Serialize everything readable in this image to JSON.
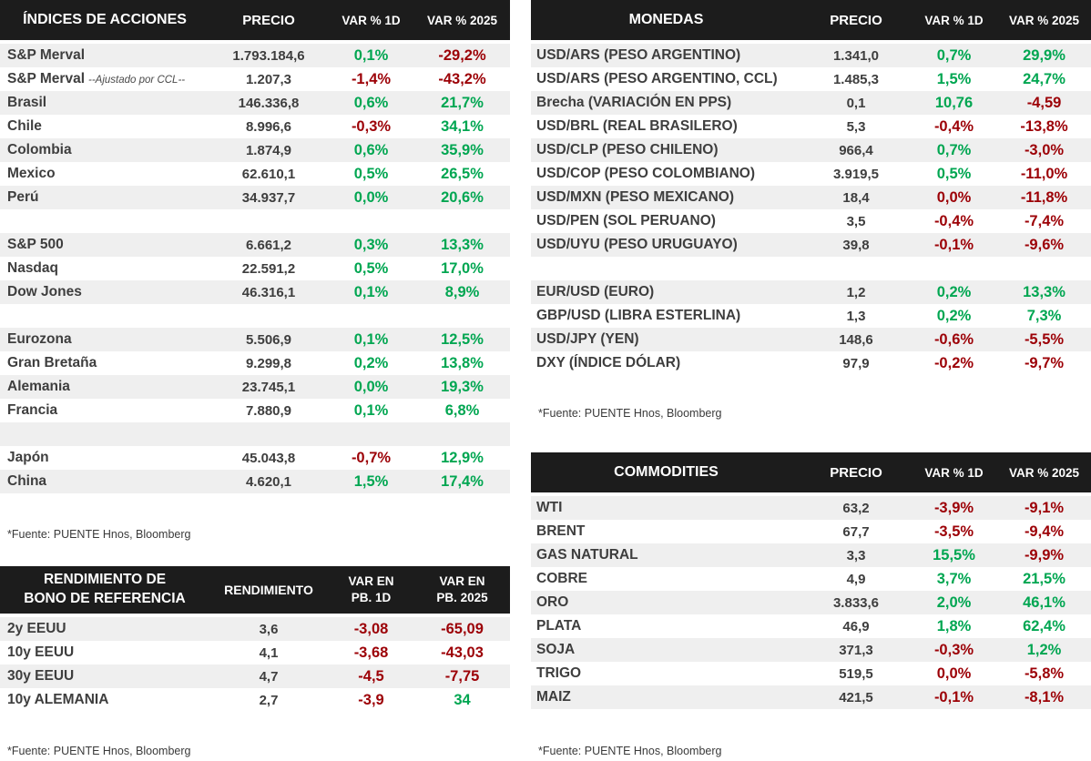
{
  "colors": {
    "positive": "#00A651",
    "negative": "#9C0006",
    "header_bg": "#1C1C1C",
    "header_text": "#FFFFFF",
    "row_stripe": "#EFEFEF",
    "text_dark": "#3E3E3E"
  },
  "stocks": {
    "title": "ÍNDICES DE ACCIONES",
    "columns": [
      "PRECIO",
      "VAR % 1D",
      "VAR % 2025"
    ],
    "rows": [
      {
        "label": "S&P Merval",
        "price": "1.793.184,6",
        "var1d": "0,1%",
        "var1d_color": "pos",
        "var2025": "-29,2%",
        "var2025_color": "neg"
      },
      {
        "label": "S&P Merval",
        "note": "--Ajustado por CCL--",
        "price": "1.207,3",
        "var1d": "-1,4%",
        "var1d_color": "neg",
        "var2025": "-43,2%",
        "var2025_color": "neg"
      },
      {
        "label": "Brasil",
        "price": "146.336,8",
        "var1d": "0,6%",
        "var1d_color": "pos",
        "var2025": "21,7%",
        "var2025_color": "pos"
      },
      {
        "label": "Chile",
        "price": "8.996,6",
        "var1d": "-0,3%",
        "var1d_color": "neg",
        "var2025": "34,1%",
        "var2025_color": "pos"
      },
      {
        "label": "Colombia",
        "price": "1.874,9",
        "var1d": "0,6%",
        "var1d_color": "pos",
        "var2025": "35,9%",
        "var2025_color": "pos"
      },
      {
        "label": "Mexico",
        "price": "62.610,1",
        "var1d": "0,5%",
        "var1d_color": "pos",
        "var2025": "26,5%",
        "var2025_color": "pos"
      },
      {
        "label": "Perú",
        "price": "34.937,7",
        "var1d": "0,0%",
        "var1d_color": "pos",
        "var2025": "20,6%",
        "var2025_color": "pos"
      },
      {
        "spacer": true
      },
      {
        "label": "S&P 500",
        "price": "6.661,2",
        "var1d": "0,3%",
        "var1d_color": "pos",
        "var2025": "13,3%",
        "var2025_color": "pos"
      },
      {
        "label": "Nasdaq",
        "price": "22.591,2",
        "var1d": "0,5%",
        "var1d_color": "pos",
        "var2025": "17,0%",
        "var2025_color": "pos"
      },
      {
        "label": "Dow Jones",
        "price": "46.316,1",
        "var1d": "0,1%",
        "var1d_color": "pos",
        "var2025": "8,9%",
        "var2025_color": "pos"
      },
      {
        "spacer": true
      },
      {
        "label": "Eurozona",
        "price": "5.506,9",
        "var1d": "0,1%",
        "var1d_color": "pos",
        "var2025": "12,5%",
        "var2025_color": "pos"
      },
      {
        "label": "Gran Bretaña",
        "price": "9.299,8",
        "var1d": "0,2%",
        "var1d_color": "pos",
        "var2025": "13,8%",
        "var2025_color": "pos"
      },
      {
        "label": "Alemania",
        "price": "23.745,1",
        "var1d": "0,0%",
        "var1d_color": "pos",
        "var2025": "19,3%",
        "var2025_color": "pos"
      },
      {
        "label": "Francia",
        "price": "7.880,9",
        "var1d": "0,1%",
        "var1d_color": "pos",
        "var2025": "6,8%",
        "var2025_color": "pos"
      },
      {
        "spacer": true
      },
      {
        "label": "Japón",
        "price": "45.043,8",
        "var1d": "-0,7%",
        "var1d_color": "neg",
        "var2025": "12,9%",
        "var2025_color": "pos"
      },
      {
        "label": "China",
        "price": "4.620,1",
        "var1d": "1,5%",
        "var1d_color": "pos",
        "var2025": "17,4%",
        "var2025_color": "pos"
      }
    ],
    "source": "*Fuente: PUENTE Hnos, Bloomberg"
  },
  "bonds": {
    "title_line1": "RENDIMIENTO DE",
    "title_line2": "BONO DE REFERENCIA",
    "columns": [
      {
        "line1": "RENDIMIENTO",
        "line2": ""
      },
      {
        "line1": "VAR EN",
        "line2": "PB. 1D"
      },
      {
        "line1": "VAR EN",
        "line2": "PB. 2025"
      }
    ],
    "rows": [
      {
        "label": "2y EEUU",
        "price": "3,6",
        "var1d": "-3,08",
        "var1d_color": "neg",
        "var2025": "-65,09",
        "var2025_color": "neg"
      },
      {
        "label": "10y EEUU",
        "price": "4,1",
        "var1d": "-3,68",
        "var1d_color": "neg",
        "var2025": "-43,03",
        "var2025_color": "neg"
      },
      {
        "label": "30y EEUU",
        "price": "4,7",
        "var1d": "-4,5",
        "var1d_color": "neg",
        "var2025": "-7,75",
        "var2025_color": "neg"
      },
      {
        "label": "10y ALEMANIA",
        "price": "2,7",
        "var1d": "-3,9",
        "var1d_color": "neg",
        "var2025": "34",
        "var2025_color": "pos"
      }
    ],
    "source": "*Fuente: PUENTE Hnos, Bloomberg"
  },
  "currencies": {
    "title": "MONEDAS",
    "columns": [
      "PRECIO",
      "VAR % 1D",
      "VAR % 2025"
    ],
    "rows": [
      {
        "label": "USD/ARS (PESO ARGENTINO)",
        "price": "1.341,0",
        "var1d": "0,7%",
        "var1d_color": "pos",
        "var2025": "29,9%",
        "var2025_color": "pos"
      },
      {
        "label": "USD/ARS (PESO ARGENTINO, CCL)",
        "price": "1.485,3",
        "var1d": "1,5%",
        "var1d_color": "pos",
        "var2025": "24,7%",
        "var2025_color": "pos"
      },
      {
        "label": "Brecha (VARIACIÓN EN PPS)",
        "price": "0,1",
        "var1d": "10,76",
        "var1d_color": "pos",
        "var2025": "-4,59",
        "var2025_color": "neg"
      },
      {
        "label": "USD/BRL (REAL BRASILERO)",
        "price": "5,3",
        "var1d": "-0,4%",
        "var1d_color": "neg",
        "var2025": "-13,8%",
        "var2025_color": "neg"
      },
      {
        "label": "USD/CLP (PESO CHILENO)",
        "price": "966,4",
        "var1d": "0,7%",
        "var1d_color": "pos",
        "var2025": "-3,0%",
        "var2025_color": "neg"
      },
      {
        "label": "USD/COP (PESO COLOMBIANO)",
        "price": "3.919,5",
        "var1d": "0,5%",
        "var1d_color": "pos",
        "var2025": "-11,0%",
        "var2025_color": "neg"
      },
      {
        "label": "USD/MXN (PESO MEXICANO)",
        "price": "18,4",
        "var1d": "0,0%",
        "var1d_color": "neg",
        "var2025": "-11,8%",
        "var2025_color": "neg"
      },
      {
        "label": "USD/PEN (SOL PERUANO)",
        "price": "3,5",
        "var1d": "-0,4%",
        "var1d_color": "neg",
        "var2025": "-7,4%",
        "var2025_color": "neg"
      },
      {
        "label": "USD/UYU (PESO URUGUAYO)",
        "price": "39,8",
        "var1d": "-0,1%",
        "var1d_color": "neg",
        "var2025": "-9,6%",
        "var2025_color": "neg"
      },
      {
        "spacer": true
      },
      {
        "label": "EUR/USD (EURO)",
        "price": "1,2",
        "var1d": "0,2%",
        "var1d_color": "pos",
        "var2025": "13,3%",
        "var2025_color": "pos"
      },
      {
        "label": "GBP/USD (LIBRA ESTERLINA)",
        "price": "1,3",
        "var1d": "0,2%",
        "var1d_color": "pos",
        "var2025": "7,3%",
        "var2025_color": "pos"
      },
      {
        "label": "USD/JPY (YEN)",
        "price": "148,6",
        "var1d": "-0,6%",
        "var1d_color": "neg",
        "var2025": "-5,5%",
        "var2025_color": "neg"
      },
      {
        "label": "DXY (ÍNDICE DÓLAR)",
        "price": "97,9",
        "var1d": "-0,2%",
        "var1d_color": "neg",
        "var2025": "-9,7%",
        "var2025_color": "neg"
      }
    ],
    "source": "*Fuente: PUENTE Hnos, Bloomberg"
  },
  "commodities": {
    "title": "COMMODITIES",
    "columns": [
      "PRECIO",
      "VAR % 1D",
      "VAR % 2025"
    ],
    "rows": [
      {
        "label": "WTI",
        "price": "63,2",
        "var1d": "-3,9%",
        "var1d_color": "neg",
        "var2025": "-9,1%",
        "var2025_color": "neg"
      },
      {
        "label": "BRENT",
        "price": "67,7",
        "var1d": "-3,5%",
        "var1d_color": "neg",
        "var2025": "-9,4%",
        "var2025_color": "neg"
      },
      {
        "label": "GAS NATURAL",
        "price": "3,3",
        "var1d": "15,5%",
        "var1d_color": "pos",
        "var2025": "-9,9%",
        "var2025_color": "neg"
      },
      {
        "label": "COBRE",
        "price": "4,9",
        "var1d": "3,7%",
        "var1d_color": "pos",
        "var2025": "21,5%",
        "var2025_color": "pos"
      },
      {
        "label": "ORO",
        "price": "3.833,6",
        "var1d": "2,0%",
        "var1d_color": "pos",
        "var2025": "46,1%",
        "var2025_color": "pos"
      },
      {
        "label": "PLATA",
        "price": "46,9",
        "var1d": "1,8%",
        "var1d_color": "pos",
        "var2025": "62,4%",
        "var2025_color": "pos"
      },
      {
        "label": "SOJA",
        "price": "371,3",
        "var1d": "-0,3%",
        "var1d_color": "neg",
        "var2025": "1,2%",
        "var2025_color": "pos"
      },
      {
        "label": "TRIGO",
        "price": "519,5",
        "var1d": "0,0%",
        "var1d_color": "neg",
        "var2025": "-5,8%",
        "var2025_color": "neg"
      },
      {
        "label": "MAIZ",
        "price": "421,5",
        "var1d": "-0,1%",
        "var1d_color": "neg",
        "var2025": "-8,1%",
        "var2025_color": "neg"
      }
    ],
    "source": "*Fuente: PUENTE Hnos, Bloomberg"
  }
}
